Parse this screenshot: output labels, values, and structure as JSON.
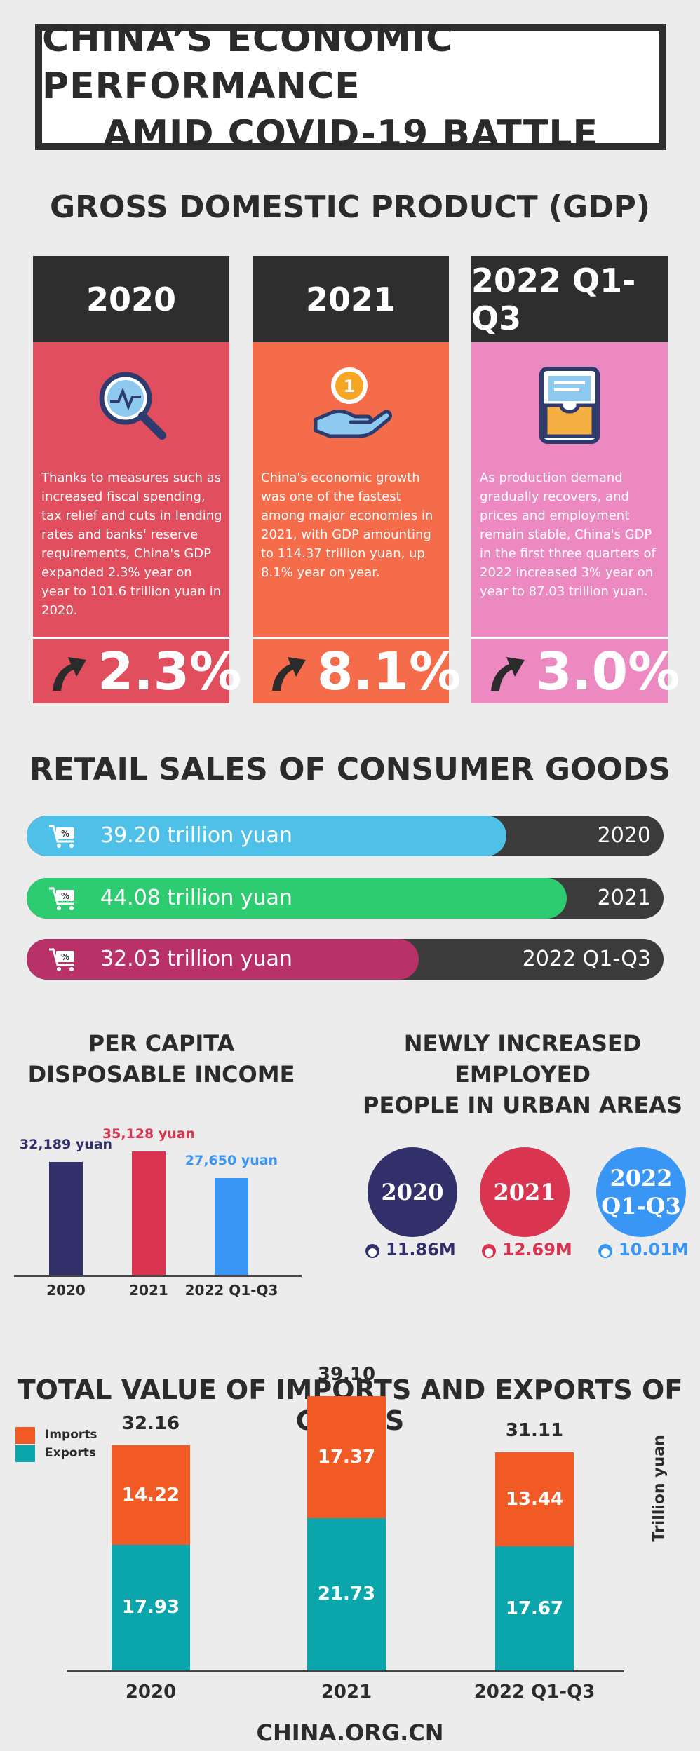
{
  "title": {
    "line1": "CHINA’S ECONOMIC PERFORMANCE",
    "line2": "AMID COVID-19 BATTLE"
  },
  "gdp": {
    "heading": "GROSS DOMESTIC PRODUCT (GDP)",
    "cards": [
      {
        "year": "2020",
        "text": "Thanks to measures such as increased fiscal spending, tax relief and cuts in lending rates and banks' reserve requirements, China's GDP expanded 2.3% year on year to 101.6 trillion yuan in 2020.",
        "growth": "2.3%",
        "color": "#e14f5f",
        "icon": "magnifier-chart-icon"
      },
      {
        "year": "2021",
        "text": "China's economic growth was one of the fastest among major economies in 2021, with GDP amounting to 114.37 trillion yuan, up 8.1% year on year.",
        "growth": "8.1%",
        "color": "#f56c4b",
        "icon": "hand-coin-icon"
      },
      {
        "year": "2022 Q1-Q3",
        "text": "As production demand gradually recovers, and prices and employment remain stable, China's GDP in the first three quarters of 2022 increased 3% year on year to 87.03 trillion yuan.",
        "growth": "3.0%",
        "color": "#ec89c0",
        "icon": "inbox-tray-icon"
      }
    ]
  },
  "retail": {
    "heading": "RETAIL SALES OF CONSUMER GOODS",
    "bars": [
      {
        "value_label": "39.20 trillion yuan",
        "year": "2020",
        "value": 39.2,
        "color": "#4fc0e8"
      },
      {
        "value_label": "44.08 trillion yuan",
        "year": "2021",
        "value": 44.08,
        "color": "#2ecc71"
      },
      {
        "value_label": "32.03 trillion yuan",
        "year": "2022 Q1-Q3",
        "value": 32.03,
        "color": "#b83269"
      }
    ]
  },
  "per_capita": {
    "heading_line1": "PER CAPITA",
    "heading_line2": "DISPOSABLE INCOME",
    "bars": [
      {
        "label": "32,189 yuan",
        "year": "2020",
        "value": 32189,
        "color": "#32306b"
      },
      {
        "label": "35,128 yuan",
        "year": "2021",
        "value": 35128,
        "color": "#d93550"
      },
      {
        "label": "27,650 yuan",
        "year": "2022 Q1-Q3",
        "value": 27650,
        "color": "#3a96f5"
      }
    ]
  },
  "employment": {
    "heading_line1": "NEWLY INCREASED EMPLOYED",
    "heading_line2": "PEOPLE IN URBAN AREAS",
    "items": [
      {
        "line1": "2020",
        "line2": "",
        "value": "11.86M",
        "color": "#32306b"
      },
      {
        "line1": "2021",
        "line2": "",
        "value": "12.69M",
        "color": "#d93550"
      },
      {
        "line1": "2022",
        "line2": "Q1-Q3",
        "value": "10.01M",
        "color": "#3a96f5"
      }
    ]
  },
  "trade": {
    "heading": "TOTAL VALUE OF IMPORTS AND EXPORTS OF GOODS",
    "legend_imports": "Imports",
    "legend_exports": "Exports",
    "unit": "Trillion yuan",
    "import_color": "#f15a24",
    "export_color": "#0aa6ac"
  },
  "chart_data": [
    {
      "type": "bar",
      "title": "RETAIL SALES OF CONSUMER GOODS",
      "categories": [
        "2020",
        "2021",
        "2022 Q1-Q3"
      ],
      "values": [
        39.2,
        44.08,
        32.03
      ],
      "ylabel": "trillion yuan"
    },
    {
      "type": "bar",
      "title": "PER CAPITA DISPOSABLE INCOME",
      "categories": [
        "2020",
        "2021",
        "2022 Q1-Q3"
      ],
      "values": [
        32189,
        35128,
        27650
      ],
      "ylabel": "yuan"
    },
    {
      "type": "bar",
      "title": "TOTAL VALUE OF IMPORTS AND EXPORTS OF GOODS",
      "categories": [
        "2020",
        "2021",
        "2022 Q1-Q3"
      ],
      "series": [
        {
          "name": "Exports",
          "values": [
            17.93,
            21.73,
            17.67
          ]
        },
        {
          "name": "Imports",
          "values": [
            14.22,
            17.37,
            13.44
          ]
        }
      ],
      "totals": [
        32.16,
        39.1,
        31.11
      ],
      "ylabel": "Trillion yuan",
      "legend": "top-left"
    }
  ],
  "footer": "CHINA.ORG.CN"
}
